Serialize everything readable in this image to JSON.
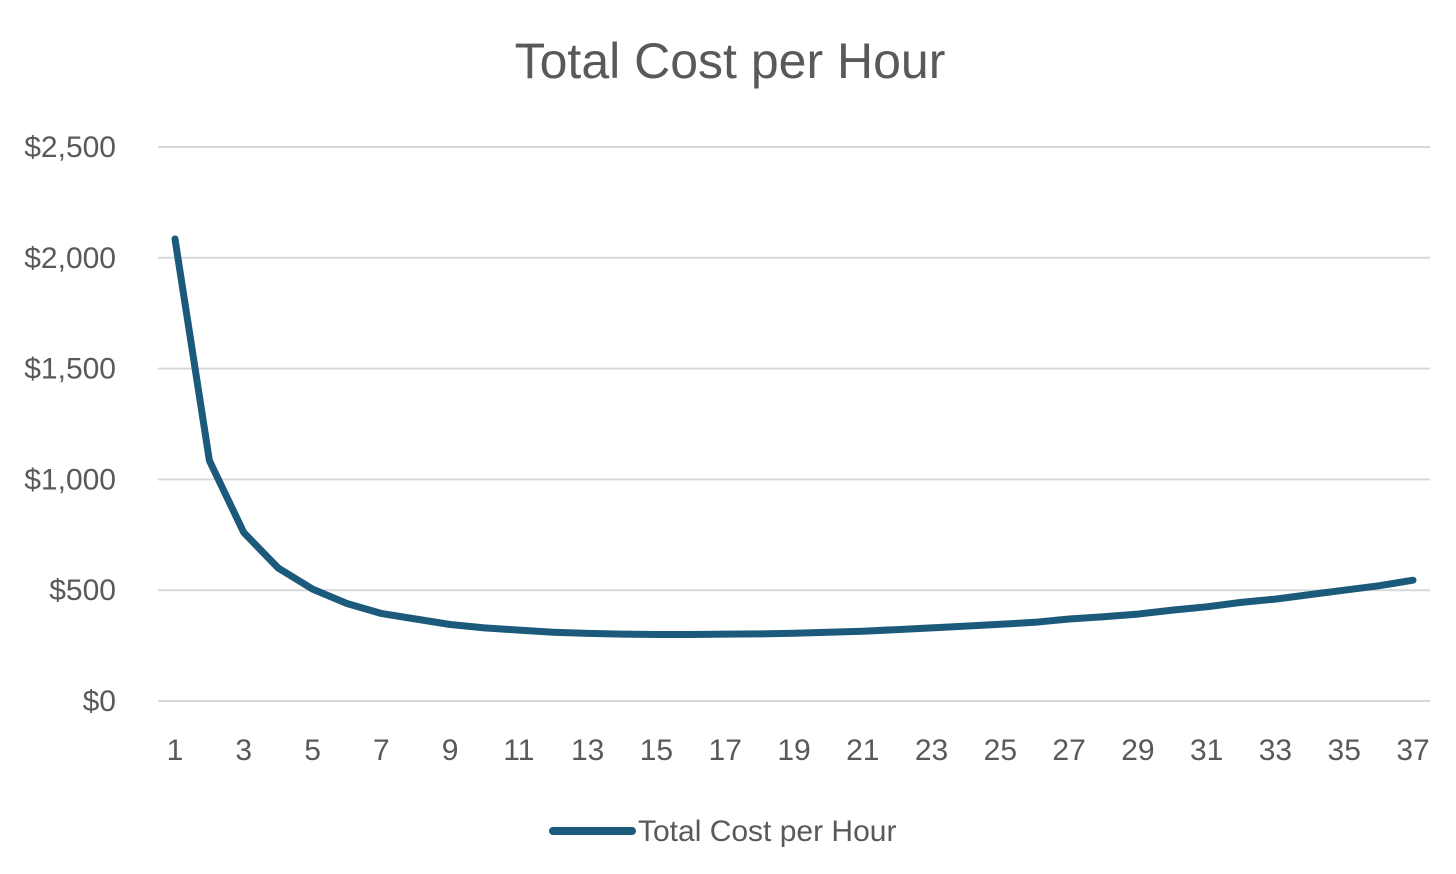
{
  "chart_data": {
    "type": "line",
    "title": "Total Cost per Hour",
    "xlabel": "",
    "ylabel": "",
    "ylim": [
      0,
      2500
    ],
    "y_ticks": [
      0,
      500,
      1000,
      1500,
      2000,
      2500
    ],
    "y_tick_labels": [
      "$0",
      "$500",
      "$1,000",
      "$1,500",
      "$2,000",
      "$2,500"
    ],
    "x_tick_labels": [
      "1",
      "3",
      "5",
      "7",
      "9",
      "11",
      "13",
      "15",
      "17",
      "19",
      "21",
      "23",
      "25",
      "27",
      "29",
      "31",
      "33",
      "35",
      "37"
    ],
    "grid": true,
    "legend_position": "bottom",
    "line_color": "#1b5a7a",
    "grid_color": "#d9d9d9",
    "text_color": "#595959",
    "x": [
      1,
      2,
      3,
      4,
      5,
      6,
      7,
      8,
      9,
      10,
      11,
      12,
      13,
      14,
      15,
      16,
      17,
      18,
      19,
      20,
      21,
      22,
      23,
      24,
      25,
      26,
      27,
      28,
      29,
      30,
      31,
      32,
      33,
      34,
      35,
      36,
      37
    ],
    "series": [
      {
        "name": "Total Cost per Hour",
        "values": [
          2085,
          1085,
          760,
          600,
          505,
          440,
          395,
          370,
          345,
          330,
          320,
          310,
          305,
          302,
          300,
          300,
          302,
          303,
          306,
          310,
          315,
          322,
          330,
          338,
          346,
          355,
          370,
          380,
          392,
          410,
          425,
          445,
          460,
          480,
          500,
          520,
          545
        ]
      }
    ]
  }
}
